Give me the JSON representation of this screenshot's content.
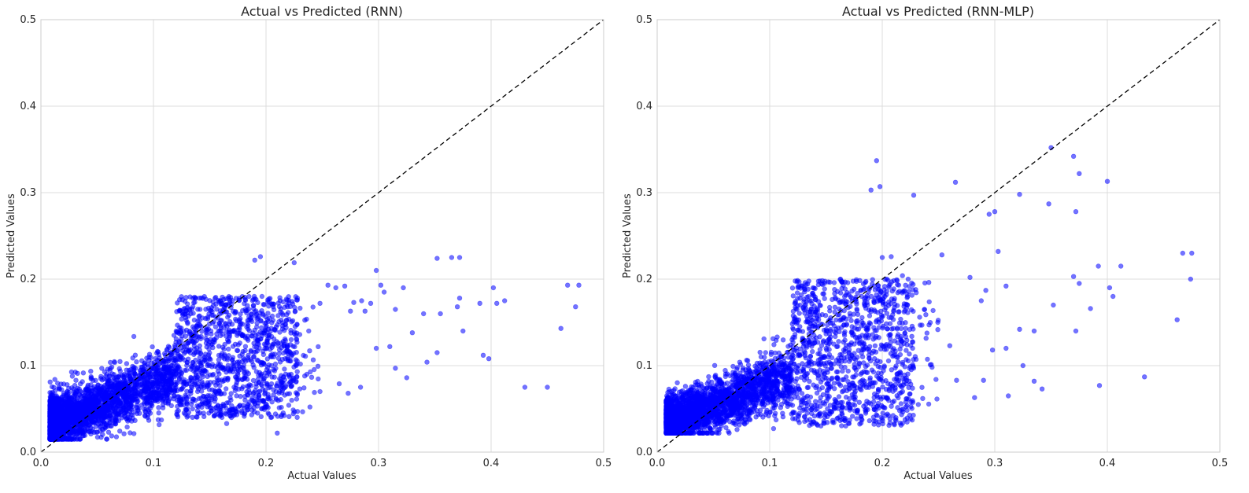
{
  "chart_data": [
    {
      "type": "scatter",
      "title": "Actual vs Predicted (RNN)",
      "xlabel": "Actual Values",
      "ylabel": "Predicted Values",
      "xlim": [
        0,
        0.5
      ],
      "ylim": [
        0,
        0.5
      ],
      "xticks": [
        "0.0",
        "0.1",
        "0.2",
        "0.3",
        "0.4",
        "0.5"
      ],
      "yticks": [
        "0.0",
        "0.1",
        "0.2",
        "0.3",
        "0.4",
        "0.5"
      ],
      "grid": true,
      "reference_line": "y = x (dashed black)",
      "marker_color": "#0000ff",
      "marker_alpha": 0.55,
      "series": [
        {
          "points": [
            [
              0.45,
              0.075
            ],
            [
              0.43,
              0.075
            ],
            [
              0.468,
              0.193
            ],
            [
              0.478,
              0.193
            ],
            [
              0.475,
              0.168
            ],
            [
              0.462,
              0.143
            ],
            [
              0.372,
              0.225
            ],
            [
              0.365,
              0.225
            ],
            [
              0.352,
              0.224
            ],
            [
              0.402,
              0.19
            ],
            [
              0.412,
              0.175
            ],
            [
              0.405,
              0.172
            ],
            [
              0.398,
              0.108
            ],
            [
              0.393,
              0.112
            ],
            [
              0.375,
              0.14
            ],
            [
              0.372,
              0.178
            ],
            [
              0.39,
              0.172
            ],
            [
              0.37,
              0.168
            ],
            [
              0.355,
              0.16
            ],
            [
              0.352,
              0.115
            ],
            [
              0.343,
              0.104
            ],
            [
              0.34,
              0.16
            ],
            [
              0.33,
              0.138
            ],
            [
              0.322,
              0.19
            ],
            [
              0.315,
              0.165
            ],
            [
              0.31,
              0.122
            ],
            [
              0.305,
              0.185
            ],
            [
              0.302,
              0.193
            ],
            [
              0.298,
              0.21
            ],
            [
              0.298,
              0.12
            ],
            [
              0.315,
              0.097
            ],
            [
              0.325,
              0.086
            ],
            [
              0.293,
              0.172
            ],
            [
              0.288,
              0.163
            ],
            [
              0.285,
              0.175
            ],
            [
              0.278,
              0.173
            ],
            [
              0.275,
              0.163
            ],
            [
              0.27,
              0.192
            ],
            [
              0.262,
              0.19
            ],
            [
              0.273,
              0.068
            ],
            [
              0.284,
              0.075
            ],
            [
              0.265,
              0.079
            ],
            [
              0.255,
              0.193
            ],
            [
              0.248,
              0.172
            ],
            [
              0.238,
              0.14
            ],
            [
              0.23,
              0.136
            ],
            [
              0.195,
              0.226
            ],
            [
              0.19,
              0.222
            ],
            [
              0.225,
              0.219
            ],
            [
              0.248,
              0.07
            ],
            [
              0.23,
              0.073
            ],
            [
              0.21,
              0.022
            ],
            [
              0.165,
              0.033
            ]
          ],
          "dense_cloud": {
            "x_range": [
              0.005,
              0.25
            ],
            "y_range": [
              0.015,
              0.18
            ],
            "approx_points": 4000
          }
        }
      ]
    },
    {
      "type": "scatter",
      "title": "Actual vs Predicted (RNN-MLP)",
      "xlabel": "Actual Values",
      "ylabel": "Predicted Values",
      "xlim": [
        0,
        0.5
      ],
      "ylim": [
        0,
        0.5
      ],
      "xticks": [
        "0.0",
        "0.1",
        "0.2",
        "0.3",
        "0.4",
        "0.5"
      ],
      "yticks": [
        "0.0",
        "0.1",
        "0.2",
        "0.3",
        "0.4",
        "0.5"
      ],
      "grid": true,
      "reference_line": "y = x (dashed black)",
      "marker_color": "#0000ff",
      "marker_alpha": 0.55,
      "series": [
        {
          "points": [
            [
              0.35,
              0.352
            ],
            [
              0.37,
              0.342
            ],
            [
              0.375,
              0.322
            ],
            [
              0.4,
              0.313
            ],
            [
              0.265,
              0.312
            ],
            [
              0.195,
              0.337
            ],
            [
              0.198,
              0.307
            ],
            [
              0.19,
              0.303
            ],
            [
              0.228,
              0.297
            ],
            [
              0.322,
              0.298
            ],
            [
              0.348,
              0.287
            ],
            [
              0.3,
              0.278
            ],
            [
              0.295,
              0.275
            ],
            [
              0.372,
              0.278
            ],
            [
              0.475,
              0.23
            ],
            [
              0.467,
              0.23
            ],
            [
              0.474,
              0.2
            ],
            [
              0.462,
              0.153
            ],
            [
              0.412,
              0.215
            ],
            [
              0.392,
              0.215
            ],
            [
              0.402,
              0.19
            ],
            [
              0.405,
              0.18
            ],
            [
              0.37,
              0.203
            ],
            [
              0.375,
              0.195
            ],
            [
              0.385,
              0.166
            ],
            [
              0.372,
              0.14
            ],
            [
              0.352,
              0.17
            ],
            [
              0.335,
              0.14
            ],
            [
              0.303,
              0.232
            ],
            [
              0.253,
              0.228
            ],
            [
              0.278,
              0.202
            ],
            [
              0.31,
              0.192
            ],
            [
              0.322,
              0.142
            ],
            [
              0.31,
              0.12
            ],
            [
              0.298,
              0.118
            ],
            [
              0.292,
              0.187
            ],
            [
              0.288,
              0.175
            ],
            [
              0.433,
              0.087
            ],
            [
              0.393,
              0.077
            ],
            [
              0.342,
              0.073
            ],
            [
              0.335,
              0.082
            ],
            [
              0.325,
              0.1
            ],
            [
              0.312,
              0.065
            ],
            [
              0.29,
              0.083
            ],
            [
              0.282,
              0.063
            ],
            [
              0.266,
              0.083
            ],
            [
              0.26,
              0.123
            ],
            [
              0.232,
              0.055
            ],
            [
              0.2,
              0.225
            ],
            [
              0.208,
              0.226
            ],
            [
              0.218,
              0.204
            ],
            [
              0.223,
              0.2
            ]
          ],
          "dense_cloud": {
            "x_range": [
              0.005,
              0.25
            ],
            "y_range": [
              0.022,
              0.21
            ],
            "approx_points": 4000
          }
        }
      ]
    }
  ]
}
